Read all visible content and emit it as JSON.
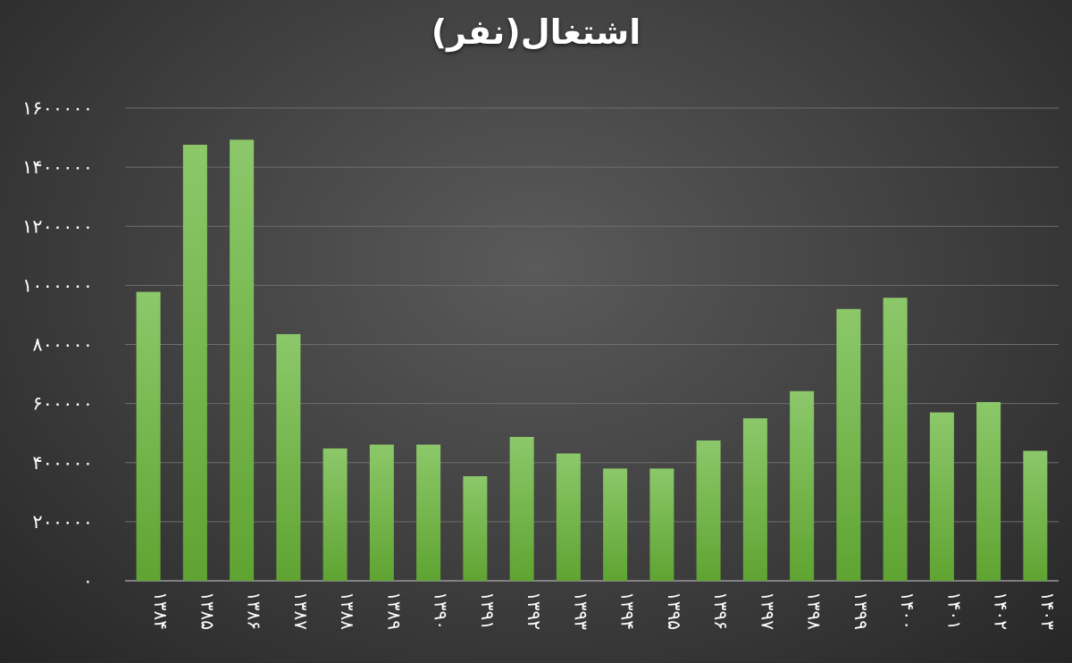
{
  "chart_data": {
    "type": "bar",
    "title": "اشتغال(نفر)",
    "xlabel": "",
    "ylabel": "",
    "categories": [
      "۱۳۸۴",
      "۱۳۸۵",
      "۱۳۸۶",
      "۱۳۸۷",
      "۱۳۸۸",
      "۱۳۸۹",
      "۱۳۹۰",
      "۱۳۹۱",
      "۱۳۹۲",
      "۱۳۹۳",
      "۱۳۹۴",
      "۱۳۹۵",
      "۱۳۹۶",
      "۱۳۹۷",
      "۱۳۹۸",
      "۱۳۹۹",
      "۱۴۰۰",
      "۱۴۰۱",
      "۱۴۰۲",
      "۱۴۰۳"
    ],
    "values": [
      978000,
      1476000,
      1493000,
      835000,
      448000,
      461000,
      461000,
      354000,
      487000,
      431000,
      380000,
      380000,
      475000,
      550000,
      642000,
      920000,
      958000,
      570000,
      605000,
      440000
    ],
    "ylim": [
      0,
      1600000
    ],
    "yticks": [
      0,
      200000,
      400000,
      600000,
      800000,
      1000000,
      1200000,
      1400000,
      1600000
    ],
    "ytick_labels": [
      "۰",
      "۲۰۰۰۰۰",
      "۴۰۰۰۰۰",
      "۶۰۰۰۰۰",
      "۸۰۰۰۰۰",
      "۱۰۰۰۰۰۰",
      "۱۲۰۰۰۰۰",
      "۱۴۰۰۰۰۰",
      "۱۶۰۰۰۰۰"
    ],
    "grid": true,
    "legend": "none",
    "colors": {
      "bar_top": "#8cc86a",
      "bar_bottom": "#5fa432",
      "grid": "#6e6e6e",
      "axis": "#9a9a9a",
      "text": "#ffffff"
    }
  }
}
